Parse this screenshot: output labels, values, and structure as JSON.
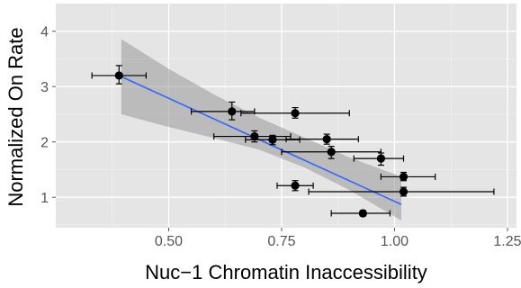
{
  "chart_data": {
    "type": "scatter",
    "xlabel": "Nuc−1 Chromatin Inaccessibility",
    "ylabel": "Normalized On Rate",
    "xlim": [
      0.25,
      1.27
    ],
    "ylim": [
      0.45,
      4.5
    ],
    "x_ticks": [
      0.5,
      0.75,
      1.0,
      1.25
    ],
    "x_tick_labels": [
      "0.50",
      "0.75",
      "1.00",
      "1.25"
    ],
    "y_ticks": [
      1,
      2,
      3,
      4
    ],
    "y_tick_labels": [
      "1",
      "2",
      "3",
      "4"
    ],
    "grid": true,
    "points": [
      {
        "x": 0.39,
        "y": 3.2,
        "xerr": [
          0.33,
          0.45
        ],
        "yerr": [
          3.05,
          3.38
        ]
      },
      {
        "x": 0.64,
        "y": 2.55,
        "xerr": [
          0.55,
          0.69
        ],
        "yerr": [
          2.4,
          2.72
        ]
      },
      {
        "x": 0.78,
        "y": 2.52,
        "xerr": [
          0.66,
          0.9
        ],
        "yerr": [
          2.43,
          2.62
        ]
      },
      {
        "x": 0.69,
        "y": 2.1,
        "xerr": [
          0.6,
          0.77
        ],
        "yerr": [
          2.0,
          2.2
        ]
      },
      {
        "x": 0.73,
        "y": 2.04,
        "xerr": [
          0.67,
          0.79
        ],
        "yerr": [
          1.95,
          2.12
        ]
      },
      {
        "x": 0.85,
        "y": 2.05,
        "xerr": [
          0.76,
          0.92
        ],
        "yerr": [
          1.96,
          2.14
        ]
      },
      {
        "x": 0.86,
        "y": 1.82,
        "xerr": [
          0.75,
          0.97
        ],
        "yerr": [
          1.7,
          1.92
        ]
      },
      {
        "x": 0.97,
        "y": 1.7,
        "xerr": [
          0.91,
          1.02
        ],
        "yerr": [
          1.58,
          1.8
        ]
      },
      {
        "x": 1.02,
        "y": 1.37,
        "xerr": [
          0.97,
          1.09
        ],
        "yerr": [
          1.3,
          1.45
        ]
      },
      {
        "x": 0.78,
        "y": 1.21,
        "xerr": [
          0.74,
          0.82
        ],
        "yerr": [
          1.12,
          1.3
        ]
      },
      {
        "x": 1.02,
        "y": 1.1,
        "xerr": [
          0.81,
          1.22
        ],
        "yerr": [
          1.02,
          1.18
        ]
      },
      {
        "x": 0.93,
        "y": 0.71,
        "xerr": [
          0.86,
          0.99
        ],
        "yerr": [
          0.66,
          0.76
        ]
      }
    ],
    "fit_line": {
      "x": [
        0.395,
        1.015
      ],
      "y": [
        3.18,
        0.87
      ]
    },
    "confidence_band": {
      "x": [
        0.395,
        0.5,
        0.6,
        0.7,
        0.8,
        0.9,
        1.015
      ],
      "upper": [
        3.86,
        3.32,
        2.86,
        2.44,
        2.08,
        1.72,
        1.37
      ],
      "lower": [
        2.5,
        2.27,
        2.07,
        1.86,
        1.54,
        1.13,
        0.58
      ]
    },
    "colors": {
      "panel": "#e5e5e5",
      "grid_major": "#ffffff",
      "grid_minor": "#f2f2f2",
      "point": "#000000",
      "fit_line": "#3366ff",
      "band": "#999999"
    }
  }
}
